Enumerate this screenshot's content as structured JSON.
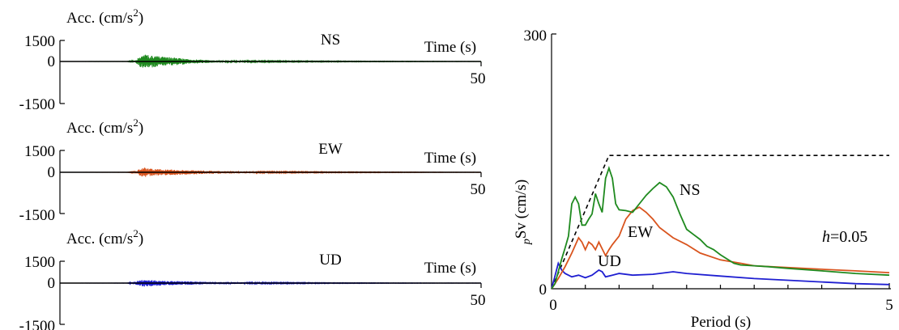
{
  "chart_data": [
    {
      "type": "line",
      "component": "NS",
      "ylabel": "Acc. (cm/s²)",
      "xlabel": "Time (s)",
      "yticks": [
        "1500",
        "0",
        "-1500"
      ],
      "ylim": [
        -1500,
        1500
      ],
      "xlim": [
        0,
        50
      ],
      "xtick_end": "50",
      "color": "#1f8a1f",
      "envelope": [
        [
          0,
          0
        ],
        [
          8,
          8
        ],
        [
          9,
          90
        ],
        [
          9.5,
          380
        ],
        [
          10,
          520
        ],
        [
          10.5,
          480
        ],
        [
          11,
          420
        ],
        [
          12,
          350
        ],
        [
          13,
          300
        ],
        [
          14,
          250
        ],
        [
          15,
          200
        ],
        [
          16,
          150
        ],
        [
          17,
          120
        ],
        [
          18,
          90
        ],
        [
          19,
          75
        ],
        [
          20,
          60
        ],
        [
          22,
          55
        ],
        [
          24,
          45
        ],
        [
          26,
          40
        ],
        [
          28,
          35
        ],
        [
          30,
          30
        ],
        [
          32,
          30
        ],
        [
          34,
          25
        ],
        [
          36,
          22
        ],
        [
          40,
          18
        ],
        [
          44,
          15
        ],
        [
          47,
          12
        ],
        [
          50,
          10
        ]
      ]
    },
    {
      "type": "line",
      "component": "EW",
      "ylabel": "Acc. (cm/s²)",
      "xlabel": "Time (s)",
      "yticks": [
        "1500",
        "0",
        "-1500"
      ],
      "ylim": [
        -1500,
        1500
      ],
      "xlim": [
        0,
        50
      ],
      "xtick_end": "50",
      "color": "#d9541e",
      "envelope": [
        [
          0,
          0
        ],
        [
          8,
          8
        ],
        [
          9,
          80
        ],
        [
          9.5,
          250
        ],
        [
          10,
          350
        ],
        [
          10.5,
          300
        ],
        [
          11,
          250
        ],
        [
          12,
          220
        ],
        [
          13,
          200
        ],
        [
          14,
          180
        ],
        [
          15,
          160
        ],
        [
          16,
          150
        ],
        [
          17,
          130
        ],
        [
          18,
          110
        ],
        [
          19,
          100
        ],
        [
          20,
          85
        ],
        [
          22,
          70
        ],
        [
          24,
          55
        ],
        [
          26,
          45
        ],
        [
          28,
          40
        ],
        [
          30,
          35
        ],
        [
          32,
          30
        ],
        [
          36,
          25
        ],
        [
          40,
          20
        ],
        [
          44,
          15
        ],
        [
          50,
          10
        ]
      ]
    },
    {
      "type": "line",
      "component": "UD",
      "ylabel": "Acc. (cm/s²)",
      "xlabel": "Time (s)",
      "yticks": [
        "1500",
        "0",
        "-1500"
      ],
      "ylim": [
        -1500,
        1500
      ],
      "xlim": [
        0,
        50
      ],
      "xtick_end": "50",
      "color": "#1f1fd1",
      "envelope": [
        [
          0,
          0
        ],
        [
          8,
          10
        ],
        [
          9,
          120
        ],
        [
          9.5,
          220
        ],
        [
          10,
          260
        ],
        [
          10.5,
          240
        ],
        [
          11,
          220
        ],
        [
          12,
          180
        ],
        [
          13,
          150
        ],
        [
          14,
          140
        ],
        [
          15,
          130
        ],
        [
          16,
          110
        ],
        [
          17,
          100
        ],
        [
          18,
          90
        ],
        [
          19,
          80
        ],
        [
          20,
          70
        ],
        [
          22,
          60
        ],
        [
          24,
          50
        ],
        [
          26,
          40
        ],
        [
          28,
          35
        ],
        [
          30,
          30
        ],
        [
          32,
          25
        ],
        [
          36,
          20
        ],
        [
          40,
          15
        ],
        [
          44,
          12
        ],
        [
          50,
          10
        ]
      ]
    },
    {
      "type": "line",
      "xlabel": "Period (s)",
      "ylabel_prefix": "p",
      "ylabel_main": "Sv (cm/s)",
      "xlim": [
        0,
        5
      ],
      "ylim": [
        0,
        300
      ],
      "xticks": [
        "0",
        "5"
      ],
      "yticks": [
        "0",
        "300"
      ],
      "damping_label_italic": "h",
      "damping_label_value": "=0.05",
      "reference": {
        "style": "dashed",
        "color": "#000000",
        "points": [
          [
            0,
            0
          ],
          [
            0.85,
            157
          ],
          [
            5,
            157
          ]
        ]
      },
      "series": [
        {
          "name": "NS",
          "color": "#1f8a1f",
          "points": [
            [
              0,
              0
            ],
            [
              0.05,
              6
            ],
            [
              0.1,
              20
            ],
            [
              0.15,
              35
            ],
            [
              0.2,
              48
            ],
            [
              0.25,
              62
            ],
            [
              0.3,
              100
            ],
            [
              0.35,
              108
            ],
            [
              0.4,
              100
            ],
            [
              0.45,
              75
            ],
            [
              0.5,
              75
            ],
            [
              0.55,
              82
            ],
            [
              0.6,
              88
            ],
            [
              0.65,
              112
            ],
            [
              0.7,
              100
            ],
            [
              0.75,
              90
            ],
            [
              0.8,
              130
            ],
            [
              0.85,
              142
            ],
            [
              0.9,
              130
            ],
            [
              0.95,
              100
            ],
            [
              1.0,
              93
            ],
            [
              1.1,
              92
            ],
            [
              1.2,
              90
            ],
            [
              1.3,
              100
            ],
            [
              1.4,
              110
            ],
            [
              1.5,
              118
            ],
            [
              1.6,
              125
            ],
            [
              1.7,
              120
            ],
            [
              1.8,
              108
            ],
            [
              1.9,
              88
            ],
            [
              2.0,
              70
            ],
            [
              2.1,
              64
            ],
            [
              2.2,
              58
            ],
            [
              2.3,
              50
            ],
            [
              2.4,
              46
            ],
            [
              2.5,
              40
            ],
            [
              2.6,
              35
            ],
            [
              2.7,
              30
            ],
            [
              2.8,
              28
            ],
            [
              3.0,
              27
            ],
            [
              3.2,
              26
            ],
            [
              3.5,
              24
            ],
            [
              4.0,
              21
            ],
            [
              4.5,
              18
            ],
            [
              5.0,
              16
            ]
          ]
        },
        {
          "name": "EW",
          "color": "#d9541e",
          "points": [
            [
              0,
              0
            ],
            [
              0.1,
              12
            ],
            [
              0.2,
              26
            ],
            [
              0.3,
              42
            ],
            [
              0.4,
              60
            ],
            [
              0.45,
              55
            ],
            [
              0.5,
              46
            ],
            [
              0.55,
              55
            ],
            [
              0.6,
              52
            ],
            [
              0.65,
              46
            ],
            [
              0.7,
              55
            ],
            [
              0.75,
              47
            ],
            [
              0.8,
              39
            ],
            [
              0.85,
              46
            ],
            [
              0.9,
              52
            ],
            [
              1.0,
              62
            ],
            [
              1.1,
              82
            ],
            [
              1.2,
              92
            ],
            [
              1.3,
              96
            ],
            [
              1.4,
              90
            ],
            [
              1.5,
              82
            ],
            [
              1.6,
              72
            ],
            [
              1.8,
              60
            ],
            [
              2.0,
              52
            ],
            [
              2.2,
              42
            ],
            [
              2.5,
              34
            ],
            [
              2.8,
              30
            ],
            [
              3.0,
              27
            ],
            [
              3.5,
              25
            ],
            [
              4.0,
              23
            ],
            [
              4.5,
              21
            ],
            [
              5.0,
              19
            ]
          ]
        },
        {
          "name": "UD",
          "color": "#1f1fd1",
          "points": [
            [
              0,
              0
            ],
            [
              0.05,
              15
            ],
            [
              0.1,
              30
            ],
            [
              0.15,
              22
            ],
            [
              0.2,
              18
            ],
            [
              0.3,
              14
            ],
            [
              0.4,
              16
            ],
            [
              0.5,
              13
            ],
            [
              0.6,
              16
            ],
            [
              0.7,
              22
            ],
            [
              0.75,
              20
            ],
            [
              0.8,
              14
            ],
            [
              0.9,
              16
            ],
            [
              1.0,
              18
            ],
            [
              1.2,
              16
            ],
            [
              1.5,
              17
            ],
            [
              1.8,
              20
            ],
            [
              2.0,
              18
            ],
            [
              2.5,
              15
            ],
            [
              3.0,
              12
            ],
            [
              3.5,
              10
            ],
            [
              4.0,
              8
            ],
            [
              4.5,
              6
            ],
            [
              5.0,
              5
            ]
          ]
        }
      ]
    }
  ]
}
